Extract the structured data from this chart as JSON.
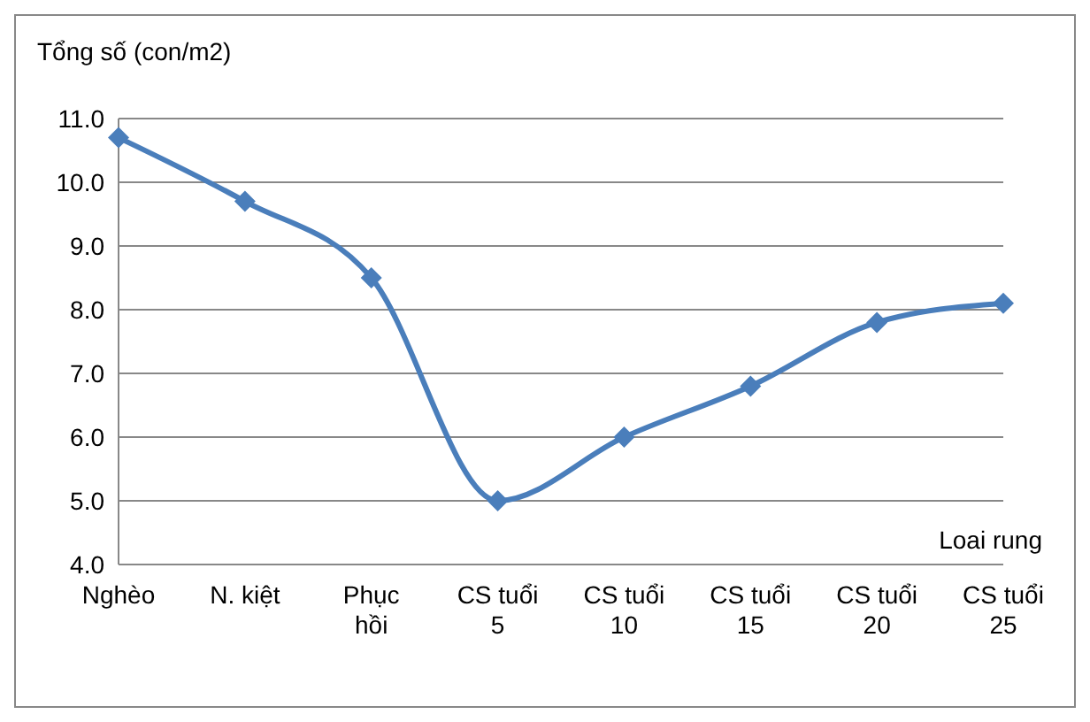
{
  "chart_data": {
    "type": "line",
    "ylabel": "Tổng số (con/m2)",
    "xlabel": "Loai rung",
    "categories": [
      "Nghèo",
      "N. kiệt",
      "Phục\nhồi",
      "CS tuổi\n5",
      "CS tuổi\n10",
      "CS tuổi\n15",
      "CS tuổi\n20",
      "CS tuổi\n25"
    ],
    "series": [
      {
        "color": "#4a7ebb",
        "values": [
          10.7,
          9.7,
          8.5,
          5.0,
          6.0,
          6.8,
          7.8,
          8.1
        ]
      }
    ],
    "ylim": [
      4,
      11
    ],
    "yticks": [
      {
        "value": 4,
        "label": "4.0"
      },
      {
        "value": 5,
        "label": "5.0"
      },
      {
        "value": 6,
        "label": "6.0"
      },
      {
        "value": 7,
        "label": "7.0"
      },
      {
        "value": 8,
        "label": "8.0"
      },
      {
        "value": 9,
        "label": "9.0"
      },
      {
        "value": 10,
        "label": "10.0"
      },
      {
        "value": 11,
        "label": "11.0"
      }
    ],
    "grid": "y",
    "marker": "diamond",
    "legend": false
  }
}
